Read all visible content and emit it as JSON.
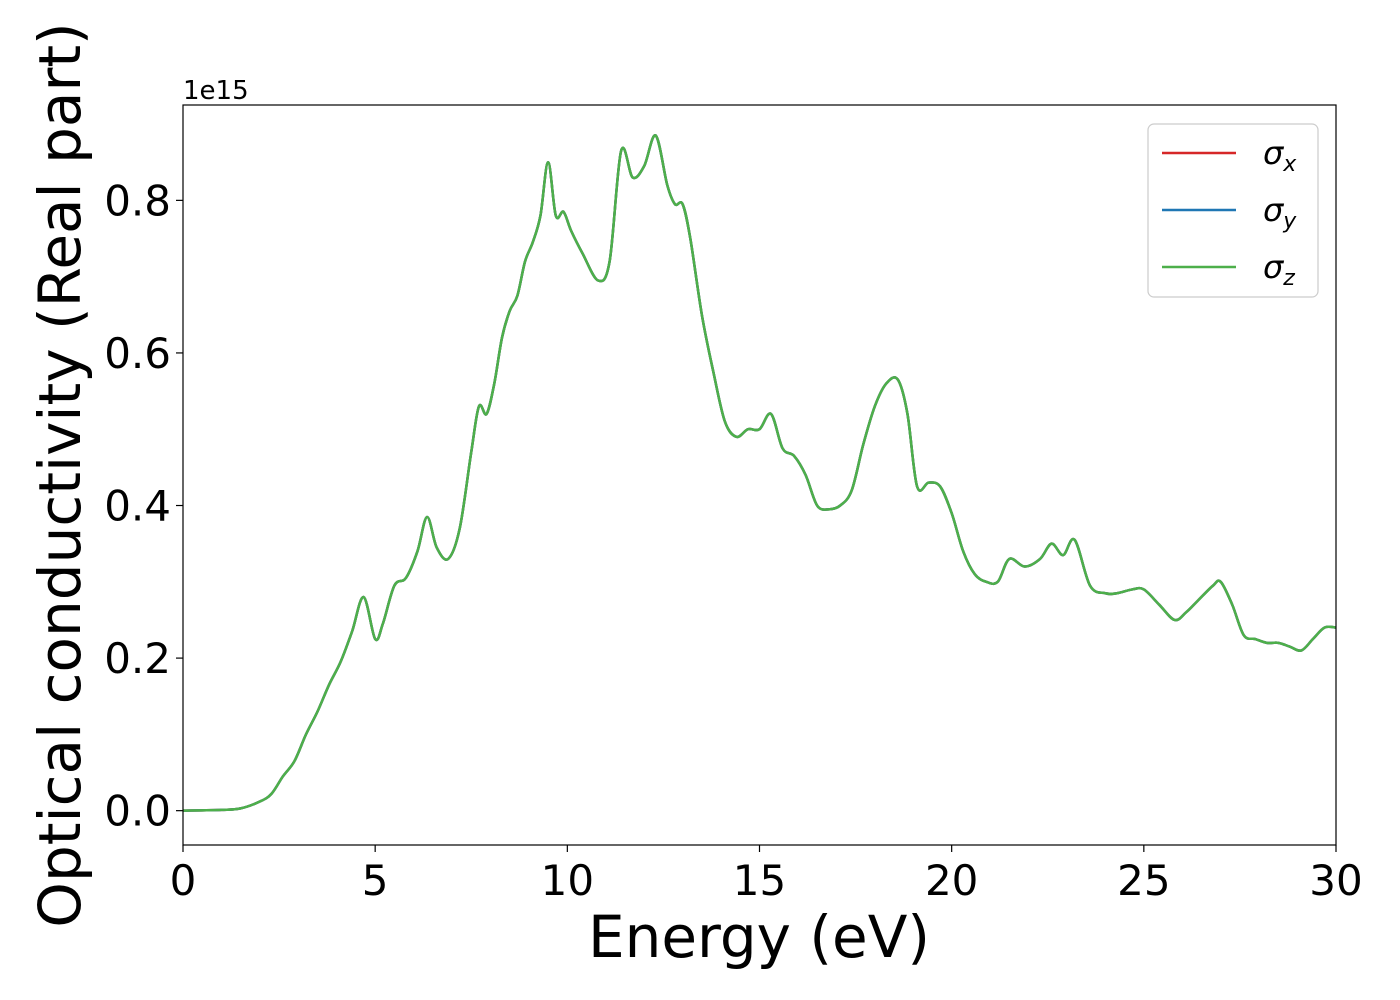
{
  "chart_data": {
    "type": "line",
    "title": "",
    "xlabel": "Energy (eV)",
    "ylabel": "Optical conductivity (Real part)",
    "offset_text": "1e15",
    "xlim": [
      0,
      30
    ],
    "ylim": [
      -0.045,
      0.925
    ],
    "y_scale_factor": 1000000000000000.0,
    "xticks": [
      0,
      5,
      10,
      15,
      20,
      25,
      30
    ],
    "xtick_labels": [
      "0",
      "5",
      "10",
      "15",
      "20",
      "25",
      "30"
    ],
    "yticks": [
      0.0,
      0.2,
      0.4,
      0.6,
      0.8
    ],
    "ytick_labels": [
      "0.0",
      "0.2",
      "0.4",
      "0.6",
      "0.8"
    ],
    "grid": false,
    "legend_position": "top-right",
    "x": [
      0,
      1.0,
      1.5,
      2.0,
      2.3,
      2.6,
      2.9,
      3.2,
      3.5,
      3.8,
      4.1,
      4.4,
      4.7,
      5.0,
      5.2,
      5.5,
      5.8,
      6.1,
      6.35,
      6.6,
      6.9,
      7.2,
      7.5,
      7.7,
      7.9,
      8.1,
      8.3,
      8.5,
      8.7,
      8.9,
      9.1,
      9.3,
      9.5,
      9.7,
      9.9,
      10.1,
      10.4,
      10.8,
      11.1,
      11.4,
      11.7,
      12.0,
      12.3,
      12.6,
      12.8,
      13.0,
      13.2,
      13.5,
      13.8,
      14.1,
      14.4,
      14.7,
      15.0,
      15.3,
      15.6,
      15.9,
      16.2,
      16.5,
      16.8,
      17.1,
      17.4,
      17.7,
      18.0,
      18.3,
      18.6,
      18.85,
      19.1,
      19.4,
      19.7,
      20.0,
      20.3,
      20.6,
      20.9,
      21.2,
      21.5,
      21.9,
      22.3,
      22.6,
      22.9,
      23.2,
      23.6,
      24.0,
      24.3,
      24.7,
      25.0,
      25.4,
      25.8,
      26.1,
      26.4,
      26.8,
      27.0,
      27.3,
      27.6,
      27.9,
      28.2,
      28.5,
      28.8,
      29.1,
      29.4,
      29.7,
      30.0
    ],
    "series": [
      {
        "name": "σx",
        "color": "#d62728",
        "values": [
          0.0,
          0.001,
          0.003,
          0.012,
          0.022,
          0.045,
          0.065,
          0.1,
          0.13,
          0.165,
          0.195,
          0.235,
          0.28,
          0.225,
          0.245,
          0.295,
          0.305,
          0.34,
          0.385,
          0.345,
          0.33,
          0.37,
          0.47,
          0.53,
          0.52,
          0.56,
          0.62,
          0.655,
          0.675,
          0.72,
          0.745,
          0.78,
          0.85,
          0.78,
          0.785,
          0.76,
          0.73,
          0.695,
          0.72,
          0.865,
          0.83,
          0.845,
          0.885,
          0.82,
          0.795,
          0.795,
          0.75,
          0.65,
          0.575,
          0.51,
          0.49,
          0.5,
          0.5,
          0.52,
          0.475,
          0.465,
          0.44,
          0.4,
          0.395,
          0.4,
          0.42,
          0.48,
          0.53,
          0.56,
          0.565,
          0.52,
          0.425,
          0.43,
          0.425,
          0.39,
          0.34,
          0.31,
          0.3,
          0.3,
          0.33,
          0.32,
          0.33,
          0.35,
          0.335,
          0.355,
          0.295,
          0.285,
          0.285,
          0.29,
          0.29,
          0.27,
          0.25,
          0.26,
          0.275,
          0.295,
          0.3,
          0.27,
          0.23,
          0.225,
          0.22,
          0.22,
          0.215,
          0.21,
          0.225,
          0.24,
          0.24
        ]
      },
      {
        "name": "σy",
        "color": "#1f77b4",
        "values": [
          0.0,
          0.001,
          0.003,
          0.012,
          0.022,
          0.045,
          0.065,
          0.1,
          0.13,
          0.165,
          0.195,
          0.235,
          0.28,
          0.225,
          0.245,
          0.295,
          0.305,
          0.34,
          0.385,
          0.345,
          0.33,
          0.37,
          0.47,
          0.53,
          0.52,
          0.56,
          0.62,
          0.655,
          0.675,
          0.72,
          0.745,
          0.78,
          0.85,
          0.78,
          0.785,
          0.76,
          0.73,
          0.695,
          0.72,
          0.865,
          0.83,
          0.845,
          0.885,
          0.82,
          0.795,
          0.795,
          0.75,
          0.65,
          0.575,
          0.51,
          0.49,
          0.5,
          0.5,
          0.52,
          0.475,
          0.465,
          0.44,
          0.4,
          0.395,
          0.4,
          0.42,
          0.48,
          0.53,
          0.56,
          0.565,
          0.52,
          0.425,
          0.43,
          0.425,
          0.39,
          0.34,
          0.31,
          0.3,
          0.3,
          0.33,
          0.32,
          0.33,
          0.35,
          0.335,
          0.355,
          0.295,
          0.285,
          0.285,
          0.29,
          0.29,
          0.27,
          0.25,
          0.26,
          0.275,
          0.295,
          0.3,
          0.27,
          0.23,
          0.225,
          0.22,
          0.22,
          0.215,
          0.21,
          0.225,
          0.24,
          0.24
        ]
      },
      {
        "name": "σz",
        "color": "#4daf4a",
        "values": [
          0.0,
          0.001,
          0.003,
          0.012,
          0.022,
          0.045,
          0.065,
          0.1,
          0.13,
          0.165,
          0.195,
          0.235,
          0.28,
          0.225,
          0.245,
          0.295,
          0.305,
          0.34,
          0.385,
          0.345,
          0.33,
          0.37,
          0.47,
          0.53,
          0.52,
          0.56,
          0.62,
          0.655,
          0.675,
          0.72,
          0.745,
          0.78,
          0.85,
          0.78,
          0.785,
          0.76,
          0.73,
          0.695,
          0.72,
          0.865,
          0.83,
          0.845,
          0.885,
          0.82,
          0.795,
          0.795,
          0.75,
          0.65,
          0.575,
          0.51,
          0.49,
          0.5,
          0.5,
          0.52,
          0.475,
          0.465,
          0.44,
          0.4,
          0.395,
          0.4,
          0.42,
          0.48,
          0.53,
          0.56,
          0.565,
          0.52,
          0.425,
          0.43,
          0.425,
          0.39,
          0.34,
          0.31,
          0.3,
          0.3,
          0.33,
          0.32,
          0.33,
          0.35,
          0.335,
          0.355,
          0.295,
          0.285,
          0.285,
          0.29,
          0.29,
          0.27,
          0.25,
          0.26,
          0.275,
          0.295,
          0.3,
          0.27,
          0.23,
          0.225,
          0.22,
          0.22,
          0.215,
          0.21,
          0.225,
          0.24,
          0.24
        ]
      }
    ],
    "legend": [
      {
        "symbol": "σ",
        "subscript": "x",
        "color": "#d62728"
      },
      {
        "symbol": "σ",
        "subscript": "y",
        "color": "#1f77b4"
      },
      {
        "symbol": "σ",
        "subscript": "z",
        "color": "#4daf4a"
      }
    ]
  }
}
